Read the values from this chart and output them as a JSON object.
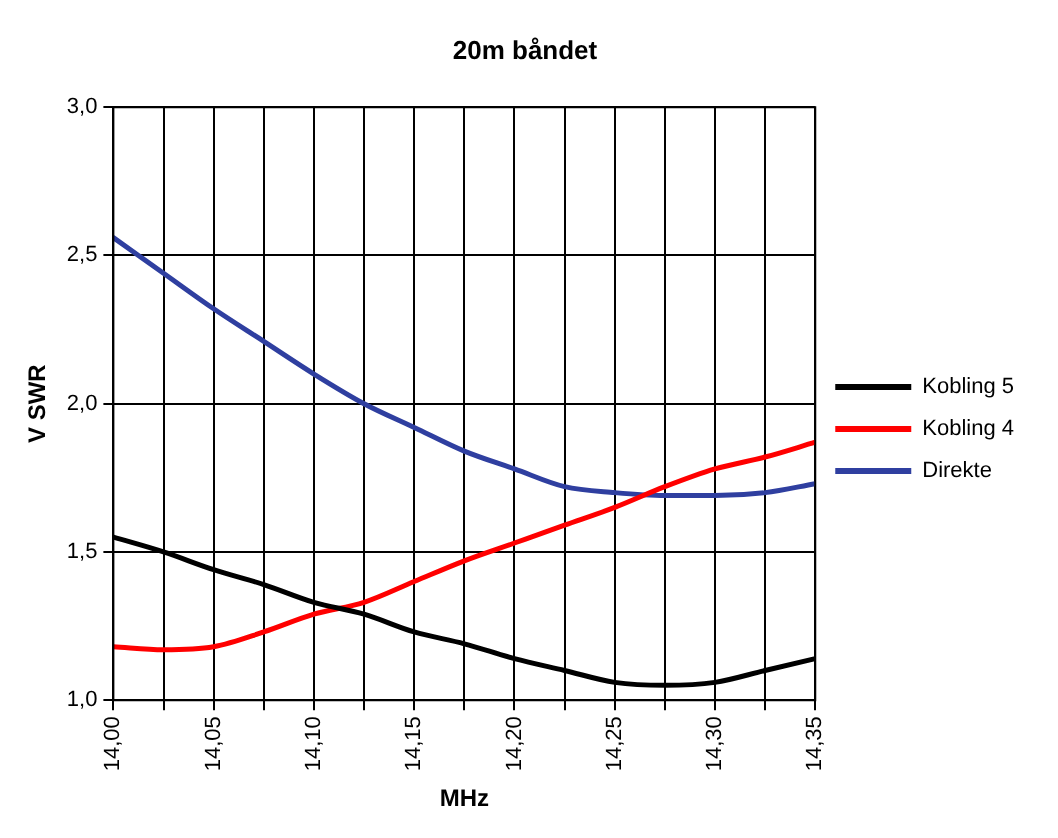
{
  "chart_data": {
    "type": "line",
    "title": "20m båndet",
    "xlabel": "MHz",
    "ylabel": "V SWR",
    "x": [
      14.0,
      14.025,
      14.05,
      14.075,
      14.1,
      14.125,
      14.15,
      14.175,
      14.2,
      14.225,
      14.25,
      14.275,
      14.3,
      14.325,
      14.35
    ],
    "series": [
      {
        "name": "Kobling 5",
        "color": "#000000",
        "values": [
          1.55,
          1.5,
          1.44,
          1.39,
          1.33,
          1.29,
          1.23,
          1.19,
          1.14,
          1.1,
          1.06,
          1.05,
          1.06,
          1.1,
          1.14
        ]
      },
      {
        "name": "Kobling 4",
        "color": "#ff0000",
        "values": [
          1.18,
          1.17,
          1.18,
          1.23,
          1.29,
          1.33,
          1.4,
          1.47,
          1.53,
          1.59,
          1.65,
          1.72,
          1.78,
          1.82,
          1.87
        ]
      },
      {
        "name": "Direkte",
        "color": "#2f3fa0",
        "values": [
          2.56,
          2.44,
          2.32,
          2.21,
          2.1,
          2.0,
          1.92,
          1.84,
          1.78,
          1.72,
          1.7,
          1.69,
          1.69,
          1.7,
          1.73
        ]
      }
    ],
    "xlim": [
      14.0,
      14.35
    ],
    "xticks": [
      {
        "value": 14.0,
        "label": "14,00"
      },
      {
        "value": 14.025,
        "label": null
      },
      {
        "value": 14.05,
        "label": "14,05"
      },
      {
        "value": 14.075,
        "label": null
      },
      {
        "value": 14.1,
        "label": "14,10"
      },
      {
        "value": 14.125,
        "label": null
      },
      {
        "value": 14.15,
        "label": "14,15"
      },
      {
        "value": 14.175,
        "label": null
      },
      {
        "value": 14.2,
        "label": "14,20"
      },
      {
        "value": 14.225,
        "label": null
      },
      {
        "value": 14.25,
        "label": "14,25"
      },
      {
        "value": 14.275,
        "label": null
      },
      {
        "value": 14.3,
        "label": "14,30"
      },
      {
        "value": 14.325,
        "label": null
      },
      {
        "value": 14.35,
        "label": "14,35"
      }
    ],
    "ylim": [
      1.0,
      3.0
    ],
    "yticks": [
      {
        "value": 1.0,
        "label": "1,0"
      },
      {
        "value": 1.5,
        "label": "1,5"
      },
      {
        "value": 2.0,
        "label": "2,0"
      },
      {
        "value": 2.5,
        "label": "2,5"
      },
      {
        "value": 3.0,
        "label": "3,0"
      }
    ],
    "grid": true,
    "legend": "right",
    "marker": "none",
    "line_style": "solid"
  }
}
